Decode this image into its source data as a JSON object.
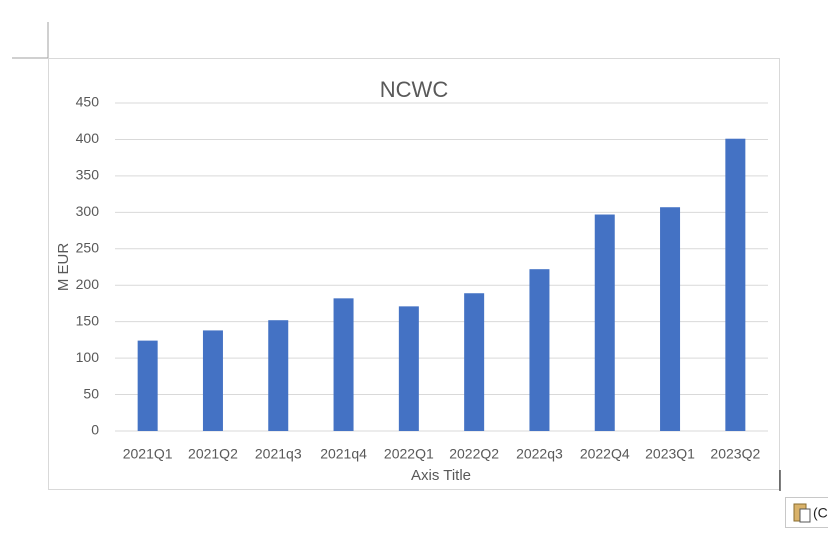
{
  "chart_data": {
    "type": "bar",
    "title": "NCWC",
    "categories": [
      "2021Q1",
      "2021Q2",
      "2021q3",
      "2021q4",
      "2022Q1",
      "2022Q2",
      "2022q3",
      "2022Q4",
      "2023Q1",
      "2023Q2"
    ],
    "values": [
      124,
      138,
      152,
      182,
      171,
      189,
      222,
      297,
      307,
      401
    ],
    "color": "#4472c4",
    "x_label": "Axis Title",
    "y_label": "M EUR",
    "ylim": [
      0,
      450
    ],
    "yticks": [
      0,
      50,
      100,
      150,
      200,
      250,
      300,
      350,
      400,
      450
    ],
    "grid": true
  },
  "paste_button_label": "(C"
}
